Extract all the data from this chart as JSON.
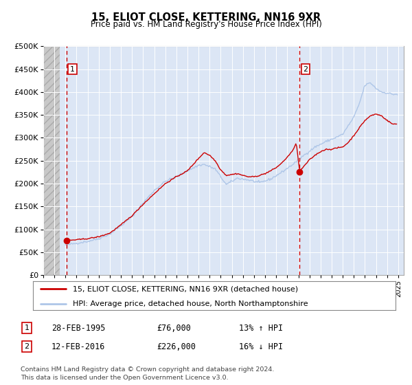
{
  "title": "15, ELIOT CLOSE, KETTERING, NN16 9XR",
  "subtitle": "Price paid vs. HM Land Registry's House Price Index (HPI)",
  "ylim": [
    0,
    500000
  ],
  "yticks": [
    0,
    50000,
    100000,
    150000,
    200000,
    250000,
    300000,
    350000,
    400000,
    450000,
    500000
  ],
  "ytick_labels": [
    "£0",
    "£50K",
    "£100K",
    "£150K",
    "£200K",
    "£250K",
    "£300K",
    "£350K",
    "£400K",
    "£450K",
    "£500K"
  ],
  "hpi_color": "#aec6e8",
  "price_color": "#cc0000",
  "vline_color": "#cc0000",
  "background_color": "#ffffff",
  "plot_bg_color": "#dce6f5",
  "hatch_bg_color": "#cccccc",
  "grid_color": "#ffffff",
  "legend_line1": "15, ELIOT CLOSE, KETTERING, NN16 9XR (detached house)",
  "legend_line2": "HPI: Average price, detached house, North Northamptonshire",
  "sale1_date": "28-FEB-1995",
  "sale1_price": "£76,000",
  "sale1_hpi": "13% ↑ HPI",
  "sale1_year": 1995.12,
  "sale1_value": 76000,
  "sale2_date": "12-FEB-2016",
  "sale2_price": "£226,000",
  "sale2_hpi": "16% ↓ HPI",
  "sale2_year": 2016.12,
  "sale2_value": 226000,
  "footer1": "Contains HM Land Registry data © Crown copyright and database right 2024.",
  "footer2": "This data is licensed under the Open Government Licence v3.0.",
  "xmin": 1993.0,
  "xmax": 2025.5,
  "hatch_xmax": 1994.5
}
